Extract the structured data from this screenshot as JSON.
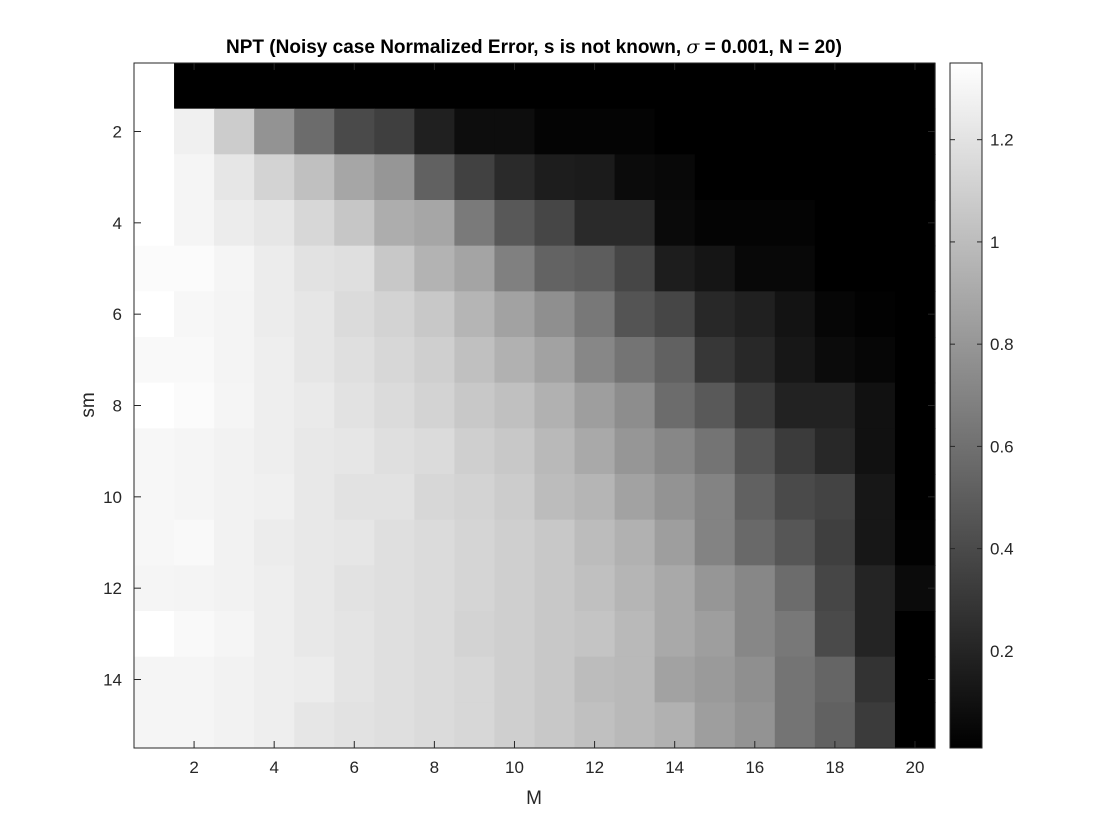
{
  "chart_data": {
    "type": "heatmap",
    "title_parts": {
      "before_symbol": "NPT (Noisy case Normalized Error, s is not known, ",
      "symbol": "σ",
      "after_symbol": " = 0.001, N = 20)"
    },
    "xlabel": "M",
    "ylabel": "sm",
    "x_range": [
      1,
      20
    ],
    "y_range": [
      1,
      15
    ],
    "x_ticks": [
      2,
      4,
      6,
      8,
      10,
      12,
      14,
      16,
      18,
      20
    ],
    "y_ticks": [
      2,
      4,
      6,
      8,
      10,
      12,
      14
    ],
    "y_direction": "reversed",
    "colormap": "gray",
    "color_range": [
      0.01,
      1.35
    ],
    "colorbar_ticks": [
      0.2,
      0.4,
      0.6,
      0.8,
      1,
      1.2
    ],
    "colorbar_labels": [
      "0.2",
      "0.4",
      "0.6",
      "0.8",
      "1",
      "1.2"
    ],
    "rows": [
      "1",
      "2",
      "3",
      "4",
      "5",
      "6",
      "7",
      "8",
      "9",
      "10",
      "11",
      "12",
      "13",
      "14",
      "15"
    ],
    "columns": [
      "1",
      "2",
      "3",
      "4",
      "5",
      "6",
      "7",
      "8",
      "9",
      "10",
      "11",
      "12",
      "13",
      "14",
      "15",
      "16",
      "17",
      "18",
      "19",
      "20"
    ],
    "values": [
      [
        1.36,
        0.01,
        0.01,
        0.01,
        0.01,
        0.01,
        0.01,
        0.01,
        0.01,
        0.01,
        0.01,
        0.01,
        0.01,
        0.01,
        0.01,
        0.01,
        0.01,
        0.01,
        0.01,
        0.01
      ],
      [
        1.36,
        1.27,
        1.08,
        0.78,
        0.58,
        0.4,
        0.34,
        0.18,
        0.08,
        0.08,
        0.03,
        0.03,
        0.03,
        0.01,
        0.01,
        0.01,
        0.01,
        0.01,
        0.01,
        0.01
      ],
      [
        1.36,
        1.3,
        1.22,
        1.12,
        1.02,
        0.88,
        0.8,
        0.52,
        0.35,
        0.23,
        0.16,
        0.15,
        0.07,
        0.05,
        0.01,
        0.01,
        0.01,
        0.01,
        0.01,
        0.01
      ],
      [
        1.36,
        1.3,
        1.25,
        1.22,
        1.14,
        1.05,
        0.92,
        0.88,
        0.65,
        0.47,
        0.38,
        0.23,
        0.23,
        0.06,
        0.03,
        0.03,
        0.03,
        0.01,
        0.01,
        0.01
      ],
      [
        1.33,
        1.33,
        1.3,
        1.25,
        1.2,
        1.18,
        1.06,
        0.95,
        0.87,
        0.68,
        0.53,
        0.5,
        0.38,
        0.16,
        0.12,
        0.05,
        0.05,
        0.01,
        0.01,
        0.01
      ],
      [
        1.36,
        1.31,
        1.29,
        1.25,
        1.22,
        1.16,
        1.12,
        1.06,
        0.96,
        0.86,
        0.76,
        0.64,
        0.45,
        0.38,
        0.22,
        0.18,
        0.11,
        0.04,
        0.02,
        0.01
      ],
      [
        1.32,
        1.32,
        1.29,
        1.26,
        1.22,
        1.18,
        1.14,
        1.1,
        1.02,
        0.94,
        0.86,
        0.72,
        0.62,
        0.52,
        0.3,
        0.22,
        0.13,
        0.07,
        0.04,
        0.01
      ],
      [
        1.36,
        1.33,
        1.3,
        1.26,
        1.24,
        1.2,
        1.16,
        1.12,
        1.06,
        1.02,
        0.94,
        0.84,
        0.75,
        0.58,
        0.48,
        0.32,
        0.19,
        0.19,
        0.1,
        0.01
      ],
      [
        1.31,
        1.3,
        1.28,
        1.26,
        1.23,
        1.22,
        1.18,
        1.16,
        1.1,
        1.06,
        0.98,
        0.9,
        0.8,
        0.72,
        0.62,
        0.45,
        0.32,
        0.22,
        0.1,
        0.01
      ],
      [
        1.31,
        1.3,
        1.28,
        1.27,
        1.23,
        1.2,
        1.2,
        1.14,
        1.12,
        1.08,
        1.0,
        0.96,
        0.86,
        0.78,
        0.7,
        0.52,
        0.4,
        0.36,
        0.13,
        0.01
      ],
      [
        1.31,
        1.32,
        1.28,
        1.25,
        1.23,
        1.22,
        1.18,
        1.16,
        1.13,
        1.1,
        1.06,
        1.0,
        0.94,
        0.84,
        0.7,
        0.56,
        0.46,
        0.34,
        0.13,
        0.02
      ],
      [
        1.3,
        1.29,
        1.28,
        1.26,
        1.23,
        1.2,
        1.18,
        1.16,
        1.13,
        1.1,
        1.06,
        1.02,
        0.96,
        0.9,
        0.8,
        0.72,
        0.58,
        0.38,
        0.2,
        0.07
      ],
      [
        1.36,
        1.32,
        1.3,
        1.26,
        1.23,
        1.21,
        1.18,
        1.16,
        1.12,
        1.1,
        1.06,
        1.04,
        0.98,
        0.9,
        0.84,
        0.72,
        0.64,
        0.4,
        0.2,
        0.01
      ],
      [
        1.3,
        1.3,
        1.28,
        1.26,
        1.25,
        1.21,
        1.18,
        1.16,
        1.14,
        1.1,
        1.06,
        1.0,
        0.98,
        0.86,
        0.82,
        0.76,
        0.62,
        0.54,
        0.28,
        0.01
      ],
      [
        1.3,
        1.3,
        1.28,
        1.26,
        1.22,
        1.2,
        1.18,
        1.16,
        1.14,
        1.1,
        1.06,
        1.02,
        0.98,
        0.94,
        0.84,
        0.78,
        0.62,
        0.52,
        0.32,
        0.01
      ]
    ]
  }
}
